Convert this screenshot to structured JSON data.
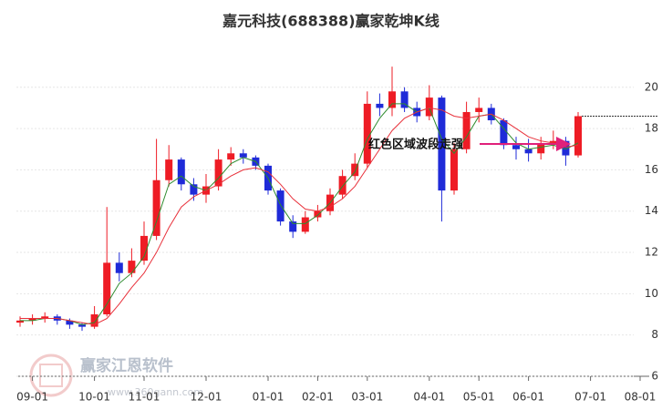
{
  "chart_data": {
    "type": "candlestick",
    "title": "嘉元科技(688388)赢家乾坤K线",
    "annotation": "红色区域波段走强",
    "watermark": "赢家江恩软件",
    "watermark_url": "www.360gann.com",
    "categories": [
      null,
      "09-01",
      null,
      null,
      null,
      null,
      "10-01",
      null,
      null,
      null,
      "11-01",
      null,
      null,
      null,
      null,
      "12-01",
      null,
      null,
      null,
      null,
      "01-01",
      null,
      null,
      null,
      "02-01",
      null,
      null,
      null,
      "03-01",
      null,
      null,
      null,
      null,
      "04-01",
      null,
      null,
      null,
      "05-01",
      null,
      null,
      null,
      "06-01",
      null,
      null,
      null,
      null,
      "07-01",
      null,
      null,
      null,
      "08-01"
    ],
    "open": [
      8.6,
      8.7,
      8.8,
      8.9,
      8.7,
      8.5,
      8.4,
      9.0,
      11.5,
      11.0,
      11.6,
      12.8,
      15.5,
      16.5,
      15.3,
      14.8,
      15.2,
      16.5,
      16.8,
      16.6,
      16.2,
      15.0,
      13.5,
      13.0,
      13.7,
      14.0,
      14.8,
      15.7,
      16.3,
      19.2,
      19.0,
      19.8,
      19.0,
      18.6,
      19.5,
      15.0,
      17.0,
      18.8,
      19.0,
      18.4,
      17.2,
      17.0,
      16.8,
      17.3,
      17.4,
      16.7,
      null,
      null,
      null,
      null,
      null
    ],
    "close": [
      8.7,
      8.8,
      8.9,
      8.7,
      8.5,
      8.4,
      9.0,
      11.5,
      11.0,
      11.6,
      12.8,
      15.5,
      16.5,
      15.3,
      14.8,
      15.2,
      16.5,
      16.8,
      16.6,
      16.2,
      15.0,
      13.5,
      13.0,
      13.7,
      14.0,
      14.8,
      15.7,
      16.3,
      19.2,
      19.0,
      19.8,
      19.0,
      18.6,
      19.5,
      15.0,
      17.0,
      18.8,
      19.0,
      18.4,
      17.2,
      17.0,
      16.8,
      17.3,
      17.4,
      16.7,
      18.6,
      null,
      null,
      null,
      null,
      null
    ],
    "high": [
      8.9,
      9.0,
      9.1,
      9.0,
      8.8,
      8.6,
      9.4,
      14.2,
      12.0,
      12.2,
      13.5,
      17.5,
      17.2,
      16.6,
      15.6,
      15.8,
      17.0,
      17.1,
      17.0,
      16.7,
      16.3,
      15.1,
      13.8,
      14.0,
      14.3,
      15.1,
      16.0,
      16.8,
      19.8,
      19.7,
      21.0,
      20.0,
      19.3,
      20.1,
      19.6,
      17.3,
      19.3,
      19.5,
      19.2,
      18.5,
      17.6,
      17.5,
      17.6,
      17.9,
      17.6,
      18.8,
      null,
      null,
      null,
      null,
      null
    ],
    "low": [
      8.4,
      8.5,
      8.6,
      8.5,
      8.3,
      8.2,
      8.3,
      8.9,
      10.6,
      10.8,
      11.4,
      12.6,
      15.2,
      15.0,
      14.5,
      14.4,
      15.0,
      16.2,
      16.3,
      16.0,
      14.8,
      13.3,
      12.7,
      12.9,
      13.5,
      13.8,
      14.6,
      15.5,
      16.1,
      18.6,
      18.6,
      18.8,
      18.3,
      18.4,
      13.5,
      14.8,
      16.8,
      18.3,
      18.2,
      17.0,
      16.5,
      16.4,
      16.5,
      17.0,
      16.2,
      16.6,
      null,
      null,
      null,
      null,
      null
    ],
    "up_color": "#ee1c25",
    "down_color": "#1f2bd8",
    "series": [
      {
        "color": "#2e8b2e",
        "values": [
          8.7,
          8.7,
          8.8,
          8.8,
          8.7,
          8.5,
          8.6,
          9.5,
          10.5,
          11.0,
          11.8,
          13.5,
          15.3,
          15.7,
          15.2,
          15.0,
          15.6,
          16.3,
          16.6,
          16.4,
          15.6,
          14.3,
          13.4,
          13.4,
          13.8,
          14.4,
          15.2,
          15.9,
          17.5,
          18.5,
          19.2,
          19.2,
          18.8,
          19.0,
          17.5,
          16.8,
          17.6,
          18.6,
          18.7,
          18.0,
          17.3,
          17.0,
          17.1,
          17.2,
          17.0,
          17.3,
          null,
          null,
          null,
          null,
          null
        ]
      },
      {
        "color": "#e8303a",
        "values": [
          8.8,
          8.8,
          8.8,
          8.8,
          8.7,
          8.6,
          8.5,
          8.8,
          9.5,
          10.3,
          11.0,
          12.0,
          13.2,
          14.2,
          14.7,
          15.0,
          15.3,
          15.7,
          16.0,
          16.1,
          15.9,
          15.3,
          14.6,
          14.1,
          14.0,
          14.2,
          14.6,
          15.2,
          16.1,
          17.0,
          17.9,
          18.5,
          18.8,
          19.0,
          18.9,
          18.6,
          18.5,
          18.6,
          18.7,
          18.4,
          18.0,
          17.6,
          17.4,
          17.3,
          17.1,
          17.2,
          null,
          null,
          null,
          null,
          null
        ]
      }
    ],
    "ylim": [
      6,
      21.8
    ],
    "yticks": [
      6,
      8,
      10,
      12,
      14,
      16,
      18,
      20
    ],
    "grid": true
  }
}
